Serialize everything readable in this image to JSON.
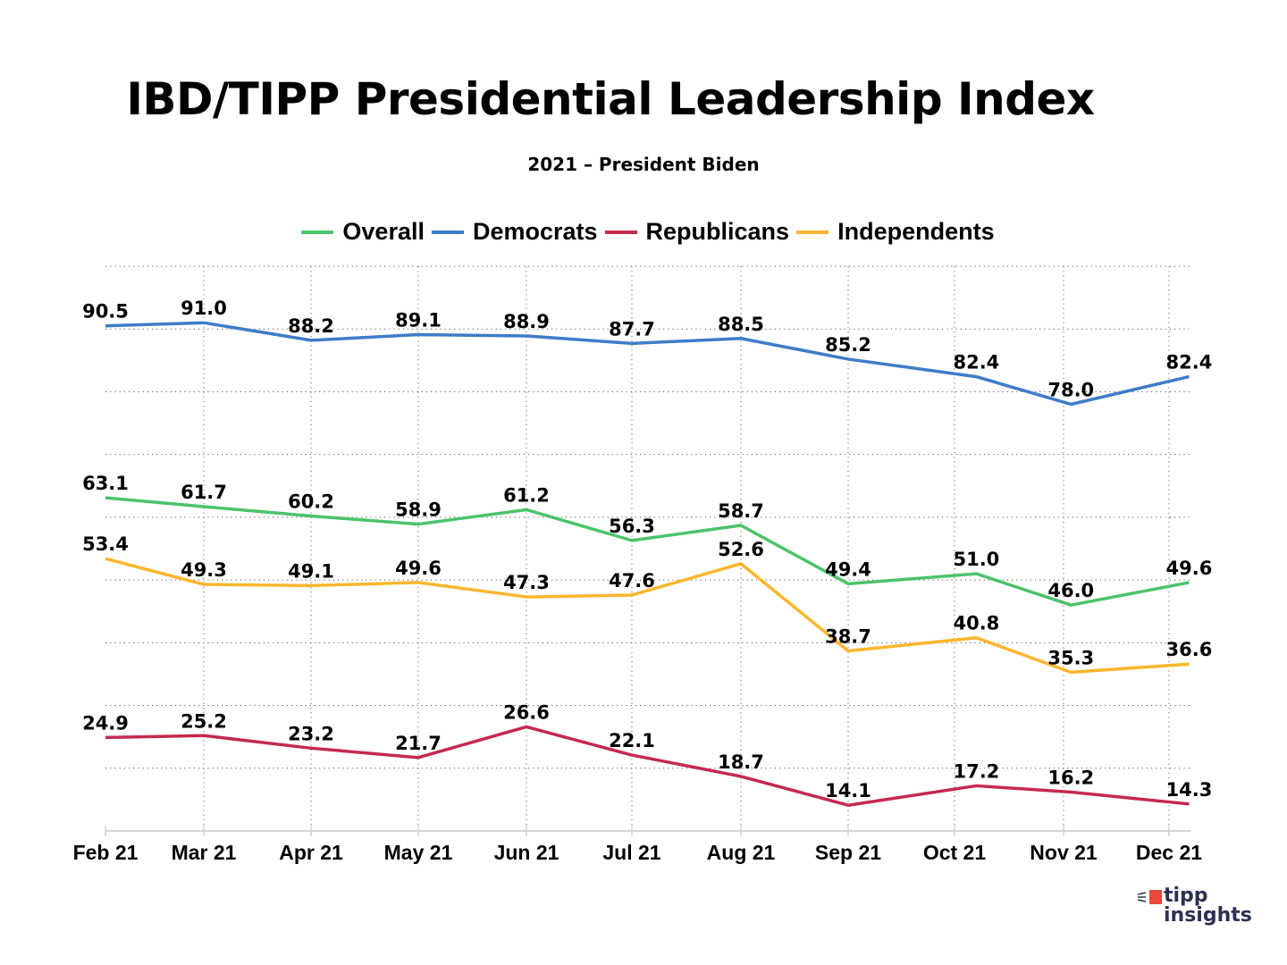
{
  "chart_data": {
    "type": "line",
    "title": "IBD/TIPP Presidential Leadership Index",
    "subtitle": "2021 – President Biden",
    "xlabel": "",
    "ylabel": "",
    "ylim": [
      10,
      100
    ],
    "y_gridlines": [
      10,
      20,
      30,
      40,
      50,
      60,
      70,
      80,
      90,
      100
    ],
    "grid": "dotted",
    "legend": "top-center",
    "categories": [
      "Feb 21",
      "Mar 21",
      "Apr 21",
      "May 21",
      "Jun 21",
      "Jul 21",
      "Aug 21",
      "Sep 21",
      "Oct 21",
      "Nov 21",
      "Dec 21"
    ],
    "point_month_offsets": [
      0,
      1,
      2,
      3,
      4,
      5,
      6,
      7,
      8.2,
      9.07,
      10.19
    ],
    "series": [
      {
        "name": "Overall",
        "color": "#4cc36a",
        "values": [
          63.1,
          61.7,
          60.2,
          58.9,
          61.2,
          56.3,
          58.7,
          49.4,
          51.0,
          46.0,
          49.6
        ]
      },
      {
        "name": "Democrats",
        "color": "#3d7cc9",
        "values": [
          90.5,
          91.0,
          88.2,
          89.1,
          88.9,
          87.7,
          88.5,
          85.2,
          82.4,
          78.0,
          82.4
        ]
      },
      {
        "name": "Republicans",
        "color": "#c5294e",
        "values": [
          24.9,
          25.2,
          23.2,
          21.7,
          26.6,
          22.1,
          18.7,
          14.1,
          17.2,
          16.2,
          14.3
        ]
      },
      {
        "name": "Independents",
        "color": "#fbb62c",
        "values": [
          53.4,
          49.3,
          49.1,
          49.6,
          47.3,
          47.6,
          52.6,
          38.7,
          40.8,
          35.3,
          36.6
        ]
      }
    ]
  },
  "logo": {
    "line1": "tipp",
    "line2": "insights",
    "accent": "#e9473c",
    "text_color": "#2b3052"
  }
}
